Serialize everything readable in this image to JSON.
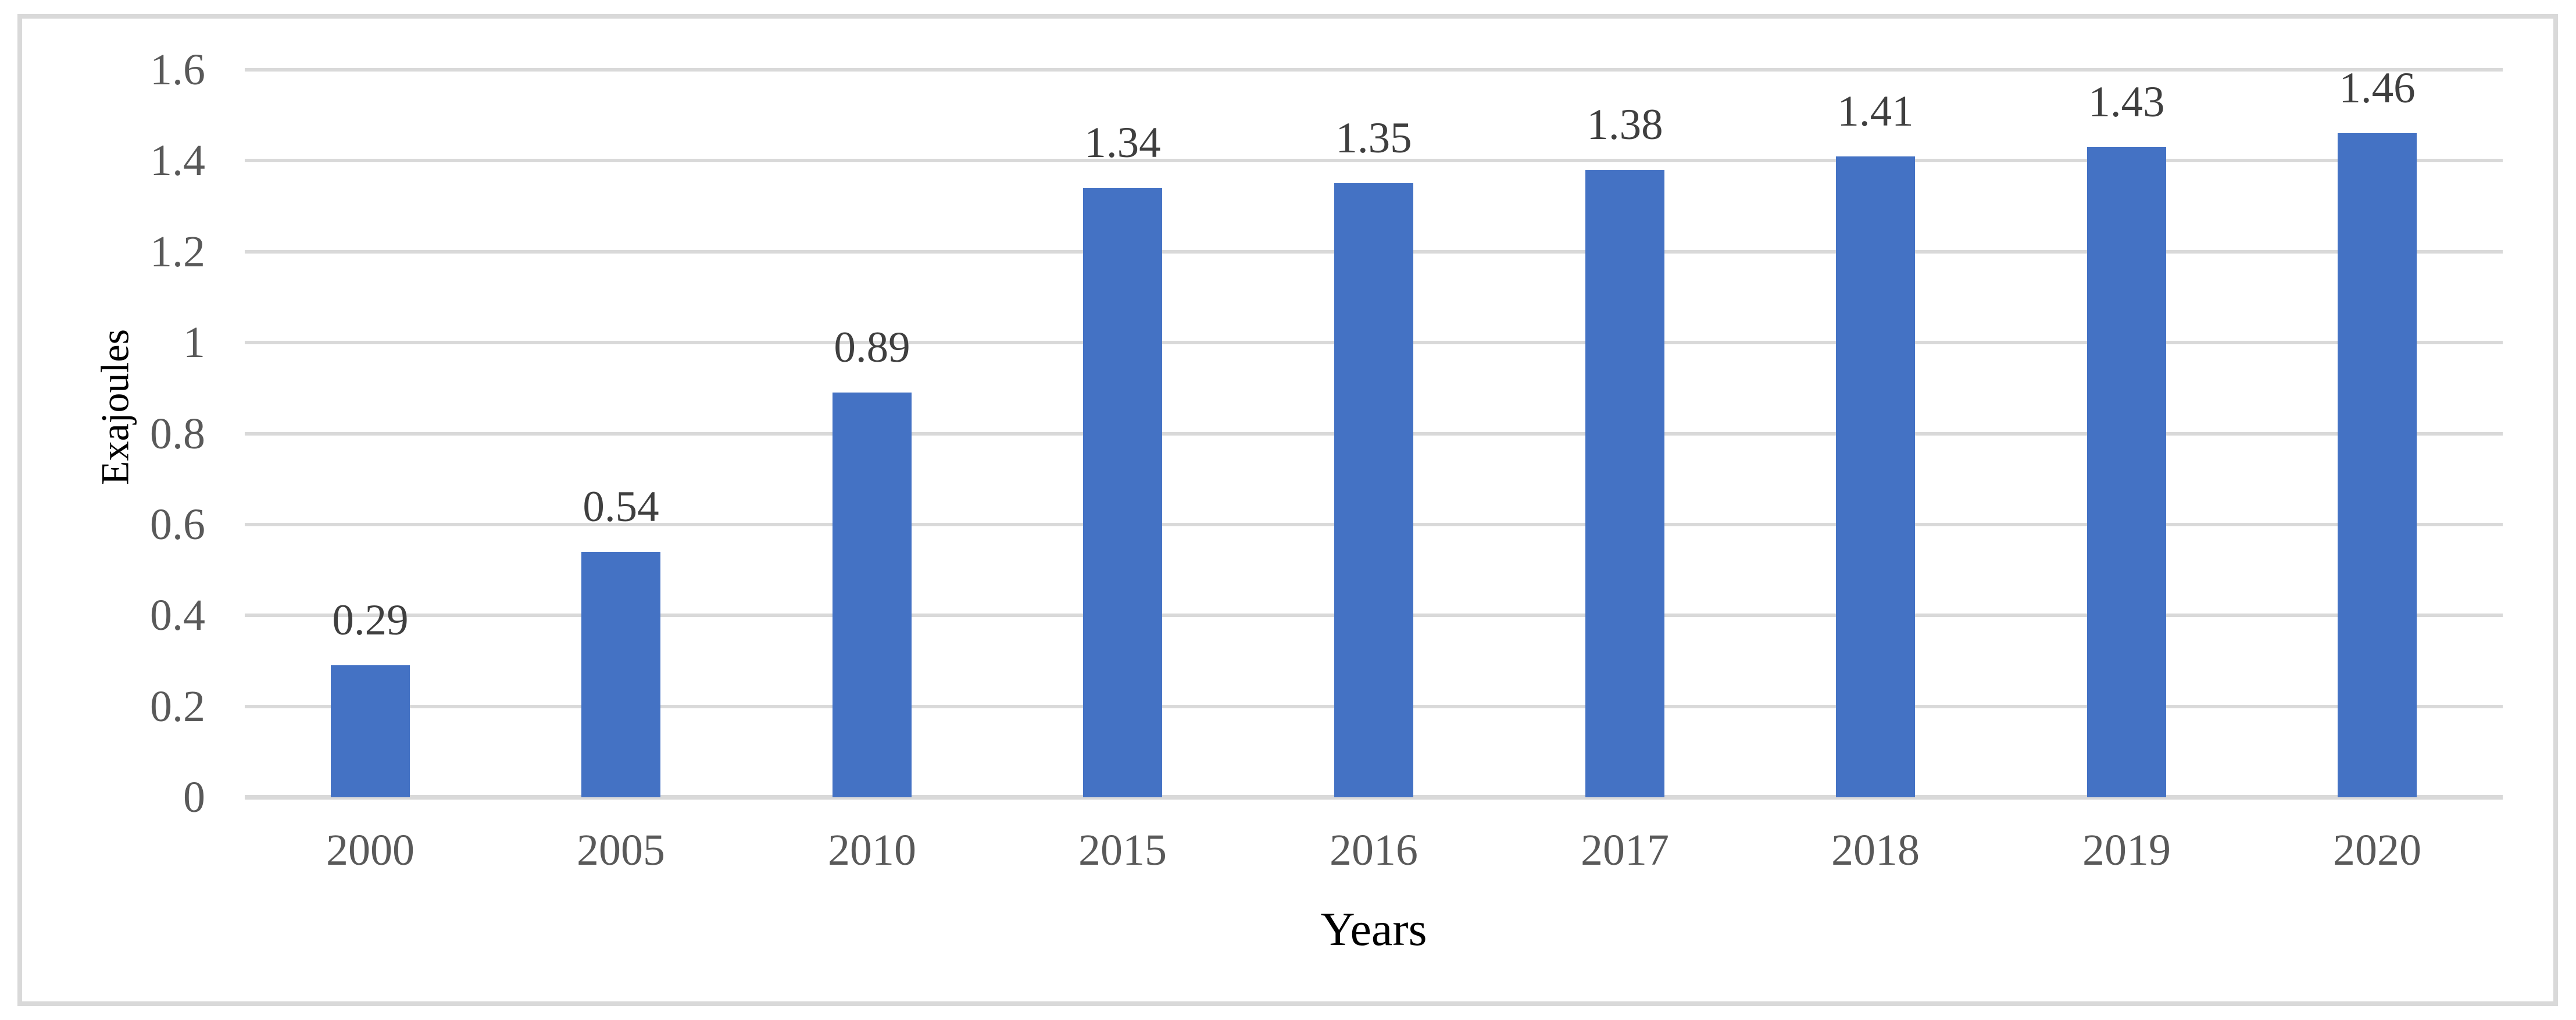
{
  "figure": {
    "y_axis_title": "Exajoules",
    "x_axis_title": "Years"
  },
  "chart_data": {
    "type": "bar",
    "title": "",
    "xlabel": "Years",
    "ylabel": "Exajoules",
    "categories": [
      "2000",
      "2005",
      "2010",
      "2015",
      "2016",
      "2017",
      "2018",
      "2019",
      "2020"
    ],
    "values": [
      0.29,
      0.54,
      0.89,
      1.34,
      1.35,
      1.38,
      1.41,
      1.43,
      1.46
    ],
    "data_labels": [
      "0.29",
      "0.54",
      "0.89",
      "1.34",
      "1.35",
      "1.38",
      "1.41",
      "1.43",
      "1.46"
    ],
    "ylim": [
      0,
      1.6
    ],
    "y_ticks": [
      0,
      0.2,
      0.4,
      0.6,
      0.8,
      1,
      1.2,
      1.4,
      1.6
    ],
    "y_tick_labels": [
      "0",
      "0.2",
      "0.4",
      "0.6",
      "0.8",
      "1",
      "1.2",
      "1.4",
      "1.6"
    ],
    "grid": "horizontal",
    "legend": "none",
    "colors": {
      "bar": "#4472C4",
      "gridline": "#D9D9D9",
      "axis_line": "#D9D9D9",
      "border": "#D9D9D9",
      "tick_label": "#595959",
      "data_label": "#3F3F3F",
      "axis_title": "#000000"
    }
  }
}
